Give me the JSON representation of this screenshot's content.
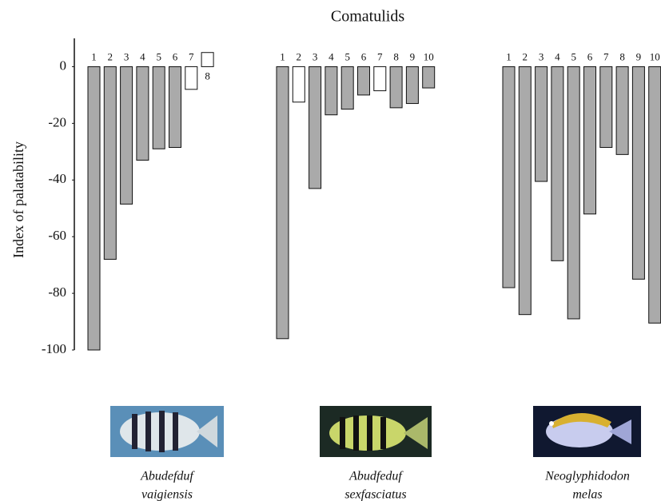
{
  "chart_data": {
    "type": "bar",
    "title": "Comatulids",
    "ylabel": "Index of palatability",
    "ylim": [
      -100,
      10
    ],
    "yticks": [
      0,
      -20,
      -40,
      -60,
      -80,
      -100
    ],
    "groups": [
      {
        "name": [
          "Abudefduf",
          "vaigiensis"
        ],
        "categories": [
          "1",
          "2",
          "3",
          "4",
          "5",
          "6",
          "7",
          "8"
        ],
        "values": [
          -100,
          -68,
          -48.5,
          -33,
          -29,
          -28.5,
          -8,
          5
        ],
        "colors": [
          "#aaaaaa",
          "#aaaaaa",
          "#aaaaaa",
          "#aaaaaa",
          "#aaaaaa",
          "#aaaaaa",
          "#ffffff",
          "#ffffff"
        ]
      },
      {
        "name": [
          "Abudfeduf",
          "sexfasciatus"
        ],
        "categories": [
          "1",
          "2",
          "3",
          "4",
          "5",
          "6",
          "7",
          "8",
          "9",
          "10"
        ],
        "values": [
          -96,
          -12.5,
          -43,
          -17,
          -15,
          -10,
          -8.5,
          -14.5,
          -13,
          -7.5
        ],
        "colors": [
          "#aaaaaa",
          "#ffffff",
          "#aaaaaa",
          "#aaaaaa",
          "#aaaaaa",
          "#aaaaaa",
          "#ffffff",
          "#aaaaaa",
          "#aaaaaa",
          "#aaaaaa"
        ]
      },
      {
        "name": [
          "Neoglyphidodon",
          "melas"
        ],
        "categories": [
          "1",
          "2",
          "3",
          "4",
          "5",
          "6",
          "7",
          "8",
          "9",
          "10"
        ],
        "values": [
          -78,
          -87.5,
          -40.5,
          -68.5,
          -89,
          -52,
          -28.5,
          -31,
          -75,
          -90.5
        ],
        "colors": [
          "#aaaaaa",
          "#aaaaaa",
          "#aaaaaa",
          "#aaaaaa",
          "#aaaaaa",
          "#aaaaaa",
          "#aaaaaa",
          "#aaaaaa",
          "#aaaaaa",
          "#aaaaaa"
        ]
      }
    ]
  }
}
